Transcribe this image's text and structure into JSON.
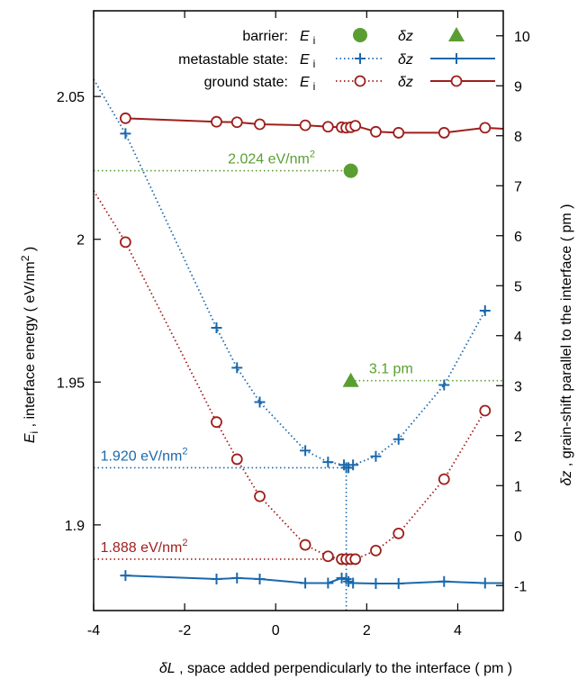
{
  "chart_data": {
    "type": "line",
    "x_label": {
      "symbol": "δL",
      "text": " ,  space added perpendicularly to the interface  ( pm )"
    },
    "y_left_label": {
      "symbol": "E",
      "sub": "i",
      "text": " ,  interface energy   ( eV/nm",
      "sup": "2",
      "tail": " )"
    },
    "y_right_label": {
      "symbol": "δz",
      "text": " ,  grain-shift parallel to the interface  ( pm )"
    },
    "xlim": [
      -4,
      5
    ],
    "ylim_left": [
      1.87,
      2.08
    ],
    "ylim_right": [
      -1.5,
      10.5
    ],
    "x_ticks": [
      -4,
      -2,
      0,
      2,
      4
    ],
    "x_tick_labels": [
      "-4",
      "-2",
      "0",
      "2",
      "4"
    ],
    "y_left_ticks": [
      1.9,
      1.95,
      2.0,
      2.05
    ],
    "y_left_tick_labels": [
      "1.9",
      "1.95",
      "2",
      "2.05"
    ],
    "y_right_ticks": [
      -1,
      0,
      1,
      2,
      3,
      4,
      5,
      6,
      7,
      8,
      9,
      10
    ],
    "y_right_tick_labels": [
      "-1",
      "0",
      "1",
      "2",
      "3",
      "4",
      "5",
      "6",
      "7",
      "8",
      "9",
      "10"
    ],
    "legend": {
      "placement": "top-center",
      "rows": [
        {
          "label": "barrier:",
          "ei": "E",
          "ei_sub": "i",
          "dz": "δz",
          "color": "#5a9e32",
          "ei_marker": "filled-circle",
          "dz_marker": "filled-triangle",
          "ei_line": "none",
          "dz_line": "none"
        },
        {
          "label": "metastable state:",
          "ei": "E",
          "ei_sub": "i",
          "dz": "δz",
          "color": "#1a68ad",
          "ei_marker": "plus",
          "dz_marker": "plus",
          "ei_line": "dotted",
          "dz_line": "solid"
        },
        {
          "label": "ground state:",
          "ei": "E",
          "ei_sub": "i",
          "dz": "δz",
          "color": "#9e1f1c",
          "ei_marker": "open-circle",
          "dz_marker": "open-circle",
          "ei_line": "dotted",
          "dz_line": "solid"
        }
      ]
    },
    "series": [
      {
        "name": "metastable state: E i",
        "axis": "left",
        "color": "#1a68ad",
        "line": "dotted",
        "marker": "plus",
        "x": [
          -4.0,
          -3.3,
          -1.3,
          -0.85,
          -0.35,
          0.65,
          1.15,
          1.5,
          1.55,
          1.6,
          1.7,
          2.2,
          2.7,
          3.7,
          4.6
        ],
        "y": [
          2.056,
          2.037,
          1.969,
          1.955,
          1.943,
          1.926,
          1.922,
          1.921,
          1.92,
          1.92,
          1.921,
          1.924,
          1.93,
          1.949,
          1.975
        ]
      },
      {
        "name": "ground state: E i",
        "axis": "left",
        "color": "#9e1f1c",
        "line": "dotted",
        "marker": "open-circle",
        "x": [
          -4.0,
          -3.3,
          -1.3,
          -0.85,
          -0.35,
          0.65,
          1.15,
          1.45,
          1.55,
          1.65,
          1.75,
          2.2,
          2.7,
          3.7,
          4.6
        ],
        "y": [
          2.017,
          1.999,
          1.936,
          1.923,
          1.91,
          1.893,
          1.889,
          1.888,
          1.888,
          1.888,
          1.888,
          1.891,
          1.897,
          1.916,
          1.94
        ]
      },
      {
        "name": "barrier: E i",
        "axis": "left",
        "color": "#5a9e32",
        "line": "none",
        "marker": "filled-circle",
        "x": [
          1.65
        ],
        "y": [
          2.024
        ]
      },
      {
        "name": "barrier: δz",
        "axis": "right",
        "color": "#5a9e32",
        "line": "none",
        "marker": "filled-triangle",
        "x": [
          1.65
        ],
        "y": [
          3.1
        ]
      },
      {
        "name": "metastable state: δz",
        "axis": "right",
        "color": "#1a68ad",
        "line": "solid",
        "marker": "plus",
        "x": [
          -3.3,
          -1.3,
          -0.85,
          -0.35,
          0.65,
          1.15,
          1.45,
          1.55,
          1.6,
          1.7,
          2.2,
          2.7,
          3.7,
          4.6,
          5.0
        ],
        "y": [
          -0.8,
          -0.87,
          -0.85,
          -0.87,
          -0.95,
          -0.95,
          -0.85,
          -0.87,
          -0.92,
          -0.95,
          -0.96,
          -0.96,
          -0.92,
          -0.95,
          -0.95
        ]
      },
      {
        "name": "ground state: δz",
        "axis": "right",
        "color": "#9e1f1c",
        "line": "solid",
        "marker": "open-circle",
        "x": [
          -3.3,
          -1.3,
          -0.85,
          -0.35,
          0.65,
          1.15,
          1.45,
          1.55,
          1.65,
          1.75,
          2.2,
          2.7,
          3.7,
          4.6,
          5.0
        ],
        "y": [
          8.35,
          8.28,
          8.27,
          8.23,
          8.21,
          8.18,
          8.17,
          8.16,
          8.17,
          8.2,
          8.08,
          8.06,
          8.06,
          8.16,
          8.14
        ]
      }
    ],
    "reference_lines": [
      {
        "color": "#5a9e32",
        "axis": "left",
        "y": 2.024,
        "x_from": -4,
        "x_to": 1.65
      },
      {
        "color": "#5a9e32",
        "axis": "right",
        "y": 3.1,
        "x_from": 1.65,
        "x_to": 5
      },
      {
        "color": "#1a68ad",
        "axis": "left",
        "y": 1.92,
        "x_from": -4,
        "x_to": 1.55
      },
      {
        "color": "#9e1f1c",
        "axis": "left",
        "y": 1.888,
        "x_from": -4,
        "x_to": 1.55
      },
      {
        "color": "#1a68ad",
        "axis": "vertical",
        "x": 1.55,
        "y_from": 1.87,
        "y_to": 1.92
      }
    ],
    "annotations": [
      {
        "text": "2.024 eV/nm",
        "sup": "2",
        "color": "#5a9e32",
        "x": -1.05,
        "y": 2.024,
        "axis": "left"
      },
      {
        "text": "3.1 pm",
        "sup": "",
        "color": "#5a9e32",
        "x": 2.05,
        "y": 3.1,
        "axis": "right"
      },
      {
        "text": "1.920 eV/nm",
        "sup": "2",
        "color": "#1a68ad",
        "x": -3.85,
        "y": 1.92,
        "axis": "left"
      },
      {
        "text": "1.888 eV/nm",
        "sup": "2",
        "color": "#9e1f1c",
        "x": -3.85,
        "y": 1.888,
        "axis": "left"
      }
    ]
  }
}
